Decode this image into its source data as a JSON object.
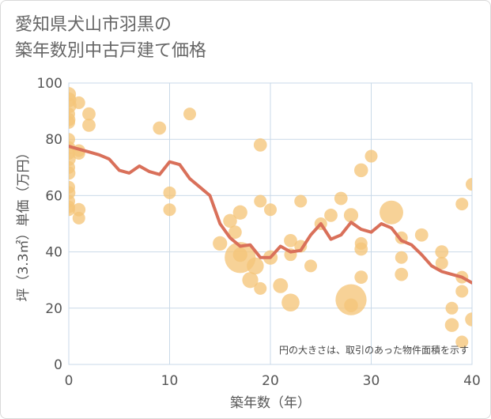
{
  "chart_data": {
    "type": "scatter",
    "title": "愛知県犬山市羽黒の\n築年数別中古戸建て価格",
    "xlabel": "築年数（年）",
    "ylabel": "坪（3.3㎡）単価（万円）",
    "xlim": [
      0,
      40
    ],
    "ylim": [
      0,
      100
    ],
    "xticks": [
      0,
      10,
      20,
      30,
      40
    ],
    "yticks": [
      0,
      20,
      40,
      60,
      80,
      100
    ],
    "grid": true,
    "annotation": "円の大きさは、取引のあった物件面積を示す",
    "colors": {
      "bubble": "#f5c57a",
      "line": "#d9705a",
      "grid": "#c9d9e8",
      "text": "#555555"
    },
    "series": [
      {
        "kind": "bubble",
        "points": [
          {
            "x": 0,
            "y": 96,
            "s": 1.3
          },
          {
            "x": 0,
            "y": 94,
            "s": 1.4
          },
          {
            "x": 0,
            "y": 92,
            "s": 1.5
          },
          {
            "x": 0,
            "y": 89,
            "s": 1.0
          },
          {
            "x": 0,
            "y": 87,
            "s": 1.1
          },
          {
            "x": 0,
            "y": 86,
            "s": 1.0
          },
          {
            "x": 0,
            "y": 80,
            "s": 1.0
          },
          {
            "x": 0,
            "y": 77,
            "s": 1.1
          },
          {
            "x": 0,
            "y": 75,
            "s": 1.0
          },
          {
            "x": 0,
            "y": 73,
            "s": 1.2
          },
          {
            "x": 0,
            "y": 70,
            "s": 1.0
          },
          {
            "x": 0,
            "y": 68,
            "s": 1.1
          },
          {
            "x": 0,
            "y": 63,
            "s": 1.0
          },
          {
            "x": 0,
            "y": 61,
            "s": 1.1
          },
          {
            "x": 0,
            "y": 58,
            "s": 1.0
          },
          {
            "x": 0,
            "y": 56,
            "s": 1.0
          },
          {
            "x": 0,
            "y": 55,
            "s": 1.0
          },
          {
            "x": 1,
            "y": 93,
            "s": 1.0
          },
          {
            "x": 1,
            "y": 76,
            "s": 1.0
          },
          {
            "x": 1,
            "y": 75,
            "s": 1.0
          },
          {
            "x": 1,
            "y": 55,
            "s": 1.1
          },
          {
            "x": 1,
            "y": 52,
            "s": 1.0
          },
          {
            "x": 2,
            "y": 89,
            "s": 1.1
          },
          {
            "x": 2,
            "y": 85,
            "s": 1.1
          },
          {
            "x": 9,
            "y": 84,
            "s": 1.1
          },
          {
            "x": 10,
            "y": 61,
            "s": 1.0
          },
          {
            "x": 10,
            "y": 55,
            "s": 1.0
          },
          {
            "x": 12,
            "y": 89,
            "s": 1.0
          },
          {
            "x": 15,
            "y": 43,
            "s": 1.3
          },
          {
            "x": 16,
            "y": 51,
            "s": 1.2
          },
          {
            "x": 16.5,
            "y": 47,
            "s": 1.1
          },
          {
            "x": 17,
            "y": 54,
            "s": 1.3
          },
          {
            "x": 17,
            "y": 38,
            "s": 6.0
          },
          {
            "x": 17,
            "y": 39,
            "s": 1.3
          },
          {
            "x": 18,
            "y": 30,
            "s": 1.6
          },
          {
            "x": 18.5,
            "y": 35,
            "s": 1.8
          },
          {
            "x": 19,
            "y": 78,
            "s": 1.1
          },
          {
            "x": 19,
            "y": 58,
            "s": 1.0
          },
          {
            "x": 19,
            "y": 27,
            "s": 1.0
          },
          {
            "x": 20,
            "y": 55,
            "s": 1.0
          },
          {
            "x": 20,
            "y": 38,
            "s": 1.3
          },
          {
            "x": 21,
            "y": 28,
            "s": 1.4
          },
          {
            "x": 22,
            "y": 44,
            "s": 1.1
          },
          {
            "x": 22,
            "y": 39,
            "s": 1.0
          },
          {
            "x": 22,
            "y": 22,
            "s": 2.0
          },
          {
            "x": 23,
            "y": 58,
            "s": 1.0
          },
          {
            "x": 23,
            "y": 42,
            "s": 1.0
          },
          {
            "x": 24,
            "y": 35,
            "s": 1.0
          },
          {
            "x": 25,
            "y": 50,
            "s": 1.0
          },
          {
            "x": 26,
            "y": 53,
            "s": 1.1
          },
          {
            "x": 27,
            "y": 59,
            "s": 1.1
          },
          {
            "x": 28,
            "y": 53,
            "s": 1.3
          },
          {
            "x": 28,
            "y": 23,
            "s": 6.0
          },
          {
            "x": 28,
            "y": 21,
            "s": 1.2
          },
          {
            "x": 29,
            "y": 69,
            "s": 1.2
          },
          {
            "x": 29,
            "y": 43,
            "s": 1.0
          },
          {
            "x": 29,
            "y": 41,
            "s": 1.1
          },
          {
            "x": 29,
            "y": 31,
            "s": 1.1
          },
          {
            "x": 30,
            "y": 74,
            "s": 1.0
          },
          {
            "x": 32,
            "y": 54,
            "s": 3.5
          },
          {
            "x": 33,
            "y": 45,
            "s": 1.0
          },
          {
            "x": 33,
            "y": 38,
            "s": 1.0
          },
          {
            "x": 33,
            "y": 32,
            "s": 1.1
          },
          {
            "x": 35,
            "y": 46,
            "s": 1.1
          },
          {
            "x": 37,
            "y": 40,
            "s": 1.1
          },
          {
            "x": 37,
            "y": 36,
            "s": 1.0
          },
          {
            "x": 38,
            "y": 20,
            "s": 1.0
          },
          {
            "x": 38,
            "y": 14,
            "s": 1.2
          },
          {
            "x": 39,
            "y": 57,
            "s": 1.0
          },
          {
            "x": 39,
            "y": 31,
            "s": 1.0
          },
          {
            "x": 39,
            "y": 26,
            "s": 1.0
          },
          {
            "x": 39,
            "y": 8,
            "s": 1.0
          },
          {
            "x": 40,
            "y": 64,
            "s": 1.0
          },
          {
            "x": 40,
            "y": 16,
            "s": 1.2
          }
        ]
      },
      {
        "kind": "line",
        "x": [
          0,
          1,
          2,
          3,
          4,
          5,
          6,
          7,
          8,
          9,
          10,
          11,
          12,
          13,
          14,
          15,
          16,
          17,
          18,
          19,
          20,
          21,
          22,
          23,
          24,
          25,
          26,
          27,
          28,
          29,
          30,
          31,
          32,
          33,
          34,
          35,
          36,
          37,
          38,
          39,
          40
        ],
        "y": [
          77.5,
          76.5,
          75.5,
          74.5,
          73,
          69,
          68,
          70.5,
          68.5,
          67.5,
          72,
          71,
          66,
          63,
          60,
          50,
          45,
          42,
          42.5,
          38,
          38,
          42,
          40,
          40.5,
          46,
          50,
          44.5,
          46,
          50.5,
          48,
          47,
          50,
          48.5,
          44,
          42.5,
          39,
          35,
          33,
          32,
          31,
          29
        ]
      }
    ]
  }
}
